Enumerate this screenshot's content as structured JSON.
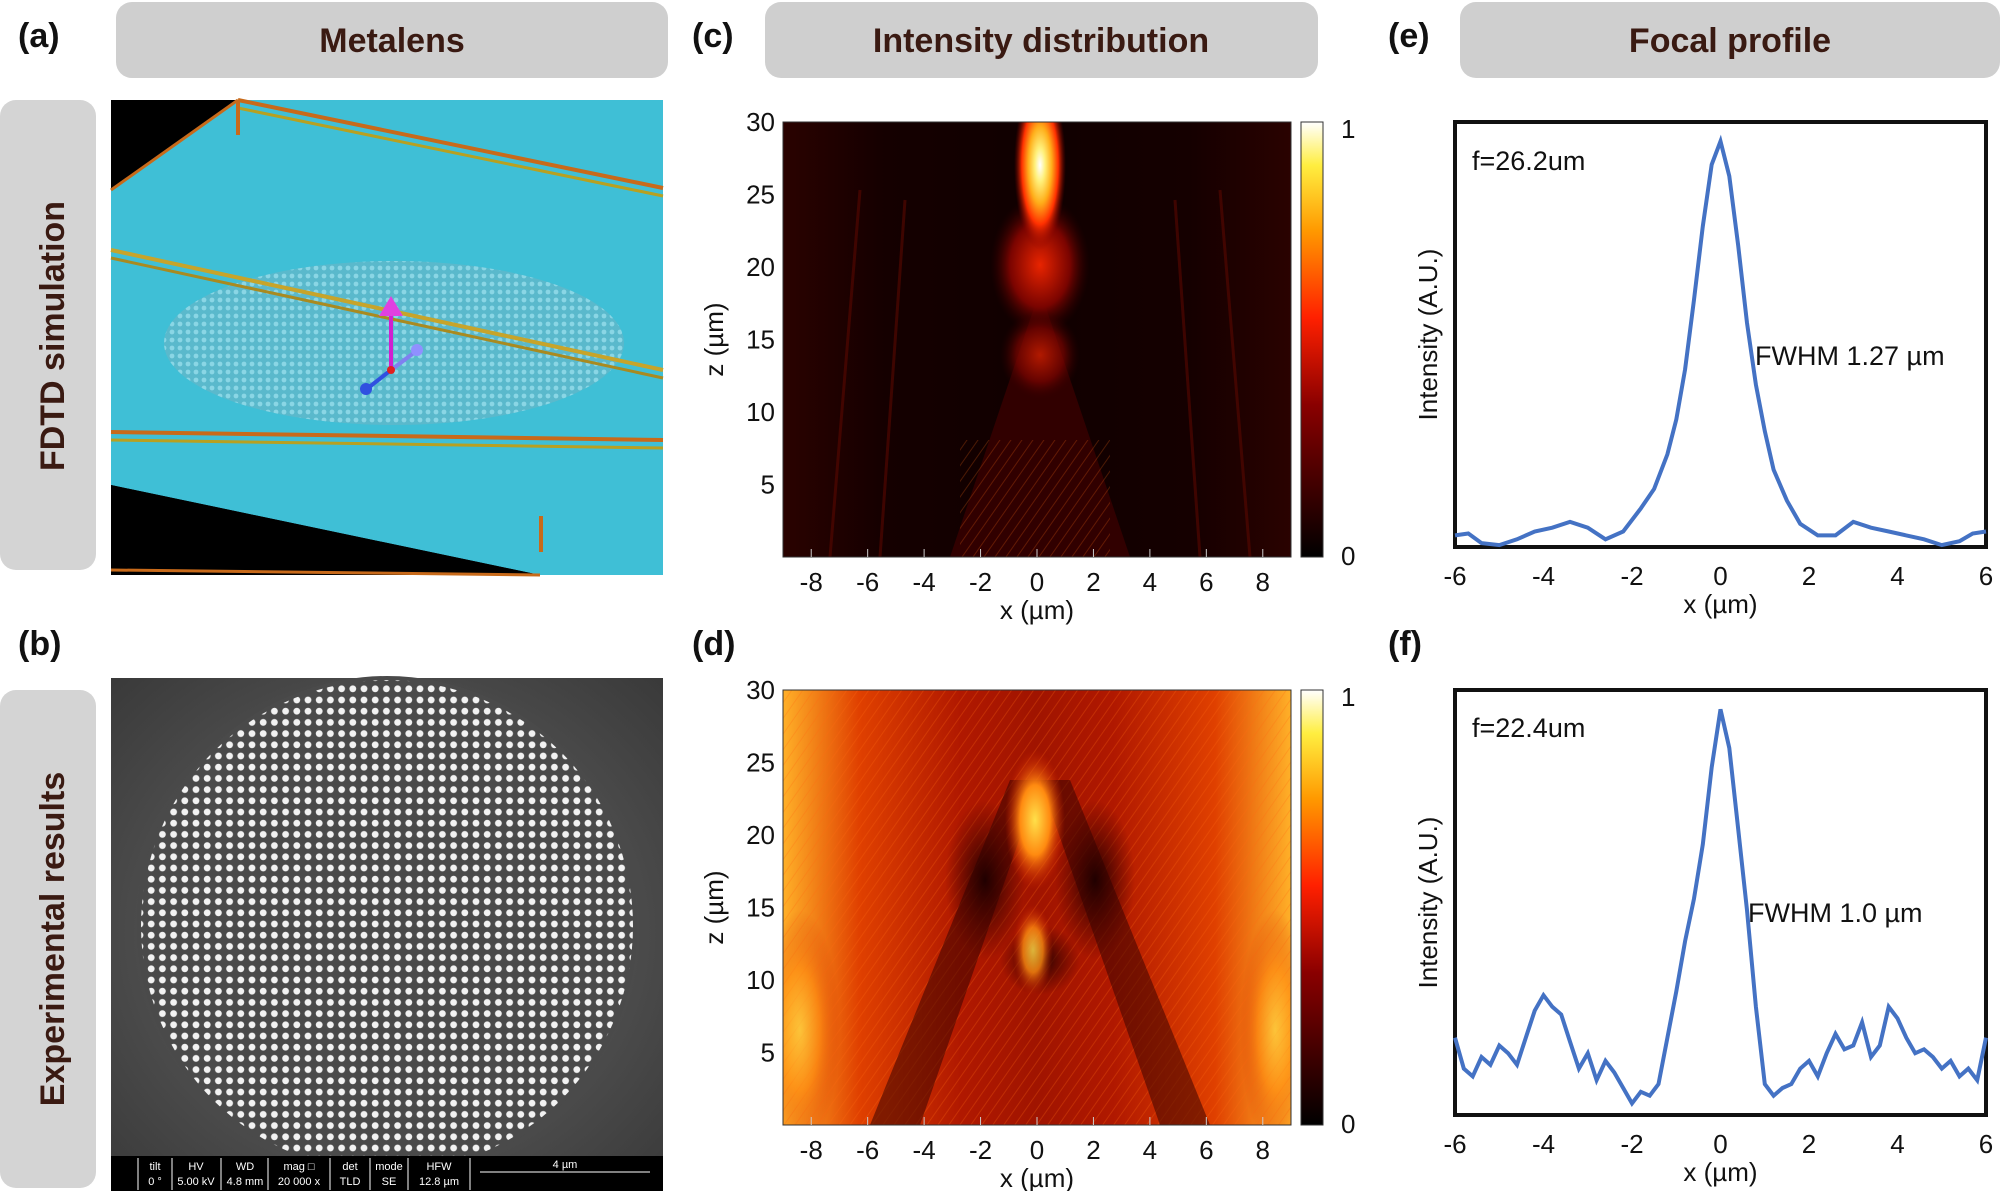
{
  "panels": {
    "a": "(a)",
    "b": "(b)",
    "c": "(c)",
    "d": "(d)",
    "e": "(e)",
    "f": "(f)"
  },
  "headers": {
    "metalens": "Metalens",
    "intensity": "Intensity distribution",
    "focal": "Focal profile"
  },
  "rows": {
    "sim": "FDTD simulation",
    "exp": "Experimental results"
  },
  "colors": {
    "pill": "#cfcfcf",
    "row_pill": "#d4d4d4",
    "pill_text": "#3a1a12",
    "substrate": "#3fbfd6",
    "curve": "#4472c4",
    "frame_gold": "#c7a42a",
    "frame_orange": "#c86a1a"
  },
  "sem_bar": {
    "tilt_h": "tilt",
    "tilt_v": "0 °",
    "hv_h": "HV",
    "hv_v": "5.00 kV",
    "wd_h": "WD",
    "wd_v": "4.8 mm",
    "mag_h": "mag □",
    "mag_v": "20 000 x",
    "det_h": "det",
    "det_v": "TLD",
    "mode_h": "mode",
    "mode_v": "SE",
    "hfw_h": "HFW",
    "hfw_v": "12.8 µm",
    "scale": "4 µm"
  },
  "chart_data": [
    {
      "id": "c",
      "type": "heatmap",
      "title": "Intensity distribution (simulation)",
      "xlabel": "x (µm)",
      "ylabel": "z (µm)",
      "xlim": [
        -9,
        9
      ],
      "ylim": [
        0,
        30
      ],
      "xticks": [
        -8,
        -6,
        -4,
        -2,
        0,
        2,
        4,
        6,
        8
      ],
      "yticks": [
        5,
        10,
        15,
        20,
        25,
        30
      ],
      "colorbar": {
        "min": 0,
        "max": 1,
        "labels": [
          "0",
          "1"
        ]
      },
      "focus": {
        "x": 0,
        "z": 26.2,
        "intensity": 1
      }
    },
    {
      "id": "d",
      "type": "heatmap",
      "title": "Intensity distribution (experiment)",
      "xlabel": "x (µm)",
      "ylabel": "z (µm)",
      "xlim": [
        -9,
        9
      ],
      "ylim": [
        0,
        30
      ],
      "xticks": [
        -8,
        -6,
        -4,
        -2,
        0,
        2,
        4,
        6,
        8
      ],
      "yticks": [
        5,
        10,
        15,
        20,
        25,
        30
      ],
      "colorbar": {
        "min": 0,
        "max": 1,
        "labels": [
          "0",
          "1"
        ]
      },
      "focus": {
        "x": 0,
        "z": 22.4,
        "intensity": 1
      }
    },
    {
      "id": "e",
      "type": "line",
      "title": "Focal profile (simulation)",
      "xlabel": "x (µm)",
      "ylabel": "Intensity (A.U.)",
      "xlim": [
        -6,
        6
      ],
      "ylim": [
        0,
        1.1
      ],
      "xticks": [
        -6,
        -4,
        -2,
        0,
        2,
        4,
        6
      ],
      "annotation_f": "f=26.2um",
      "annotation_fwhm": "FWHM 1.27 µm",
      "x": [
        -6,
        -5.7,
        -5.4,
        -5,
        -4.6,
        -4.2,
        -3.8,
        -3.4,
        -3.0,
        -2.6,
        -2.2,
        -1.8,
        -1.5,
        -1.2,
        -1.0,
        -0.8,
        -0.6,
        -0.4,
        -0.2,
        0,
        0.2,
        0.4,
        0.6,
        0.8,
        1.0,
        1.2,
        1.5,
        1.8,
        2.2,
        2.6,
        3.0,
        3.4,
        3.8,
        4.2,
        4.6,
        5.0,
        5.4,
        5.7,
        6
      ],
      "y": [
        0.03,
        0.035,
        0.01,
        0.005,
        0.02,
        0.04,
        0.05,
        0.065,
        0.05,
        0.02,
        0.04,
        0.1,
        0.15,
        0.24,
        0.33,
        0.46,
        0.64,
        0.83,
        0.99,
        1.05,
        0.96,
        0.78,
        0.58,
        0.42,
        0.3,
        0.2,
        0.12,
        0.06,
        0.03,
        0.03,
        0.065,
        0.05,
        0.04,
        0.03,
        0.02,
        0.005,
        0.015,
        0.035,
        0.04
      ]
    },
    {
      "id": "f",
      "type": "line",
      "title": "Focal profile (experiment)",
      "xlabel": "x (µm)",
      "ylabel": "Intensity (A.U.)",
      "xlim": [
        -6,
        6
      ],
      "ylim": [
        0,
        1.1
      ],
      "xticks": [
        -6,
        -4,
        -2,
        0,
        2,
        4,
        6
      ],
      "annotation_f": "f=22.4um",
      "annotation_fwhm": "FWHM 1.0 µm",
      "x": [
        -6,
        -5.8,
        -5.6,
        -5.4,
        -5.2,
        -5.0,
        -4.8,
        -4.6,
        -4.4,
        -4.2,
        -4.0,
        -3.8,
        -3.6,
        -3.4,
        -3.2,
        -3.0,
        -2.8,
        -2.6,
        -2.4,
        -2.2,
        -2.0,
        -1.8,
        -1.6,
        -1.4,
        -1.2,
        -1.0,
        -0.8,
        -0.6,
        -0.4,
        -0.2,
        0,
        0.2,
        0.4,
        0.6,
        0.8,
        1.0,
        1.2,
        1.4,
        1.6,
        1.8,
        2.0,
        2.2,
        2.4,
        2.6,
        2.8,
        3.0,
        3.2,
        3.4,
        3.6,
        3.8,
        4.0,
        4.2,
        4.4,
        4.6,
        4.8,
        5.0,
        5.2,
        5.4,
        5.6,
        5.8,
        6
      ],
      "y": [
        0.2,
        0.12,
        0.1,
        0.15,
        0.13,
        0.18,
        0.16,
        0.13,
        0.2,
        0.27,
        0.31,
        0.28,
        0.26,
        0.19,
        0.12,
        0.16,
        0.09,
        0.14,
        0.11,
        0.07,
        0.03,
        0.06,
        0.05,
        0.08,
        0.2,
        0.32,
        0.45,
        0.56,
        0.7,
        0.9,
        1.05,
        0.95,
        0.74,
        0.53,
        0.28,
        0.08,
        0.05,
        0.07,
        0.08,
        0.12,
        0.14,
        0.1,
        0.16,
        0.21,
        0.17,
        0.18,
        0.24,
        0.15,
        0.18,
        0.28,
        0.25,
        0.2,
        0.16,
        0.17,
        0.15,
        0.12,
        0.14,
        0.1,
        0.12,
        0.09,
        0.2
      ]
    }
  ]
}
